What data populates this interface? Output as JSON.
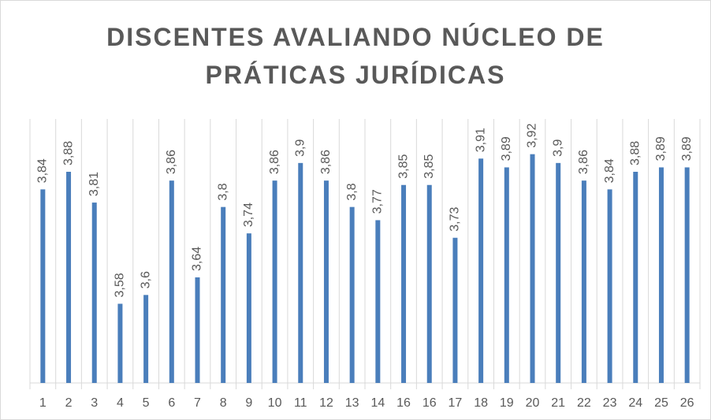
{
  "chart_data": {
    "type": "bar",
    "title": "DISCENTES AVALIANDO NÚCLEO DE PRÁTICAS JURÍDICAS",
    "categories": [
      "1",
      "2",
      "3",
      "4",
      "5",
      "6",
      "7",
      "8",
      "9",
      "10",
      "11",
      "12",
      "13",
      "14",
      "16",
      "16",
      "17",
      "18",
      "19",
      "20",
      "21",
      "22",
      "23",
      "24",
      "25",
      "26"
    ],
    "values": [
      3.84,
      3.88,
      3.81,
      3.58,
      3.6,
      3.86,
      3.64,
      3.8,
      3.74,
      3.86,
      3.9,
      3.86,
      3.8,
      3.77,
      3.85,
      3.85,
      3.73,
      3.91,
      3.89,
      3.92,
      3.9,
      3.86,
      3.84,
      3.88,
      3.89,
      3.89
    ],
    "value_labels": [
      "3,84",
      "3,88",
      "3,81",
      "3,58",
      "3,6",
      "3,86",
      "3,64",
      "3,8",
      "3,74",
      "3,86",
      "3,9",
      "3,86",
      "3,8",
      "3,77",
      "3,85",
      "3,85",
      "3,73",
      "3,91",
      "3,89",
      "3,92",
      "3,9",
      "3,86",
      "3,84",
      "3,88",
      "3,89",
      "3,89"
    ],
    "color": "#4a7ebb",
    "ylim": [
      3.4,
      4.0
    ]
  }
}
